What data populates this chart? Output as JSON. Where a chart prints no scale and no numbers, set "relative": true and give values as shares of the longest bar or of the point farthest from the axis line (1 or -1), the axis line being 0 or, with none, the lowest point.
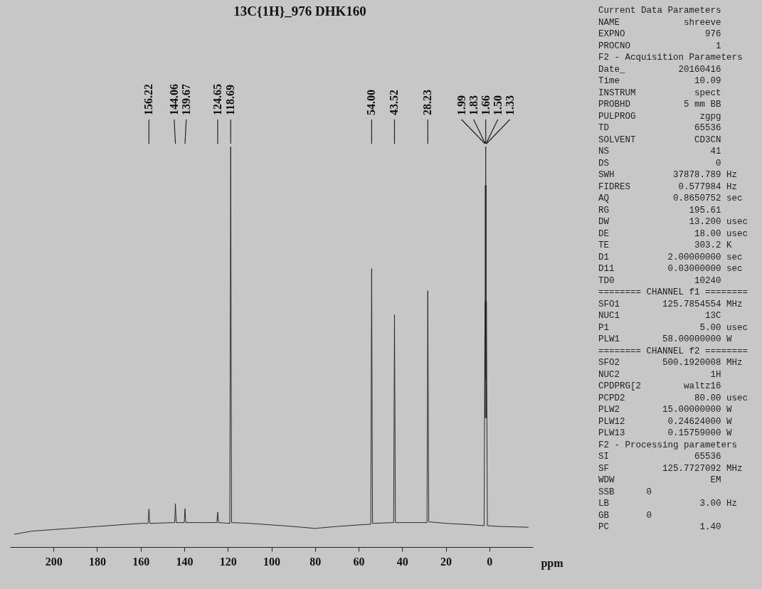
{
  "chart_data": [
    {
      "type": "line",
      "title": "13C{1H}_976 DHK160",
      "xlabel": "ppm",
      "relative": true,
      "color": "#2b2b2b",
      "tick_labels": "x",
      "xlim": [
        220,
        -20
      ],
      "xticks": [
        200,
        180,
        160,
        140,
        120,
        100,
        80,
        60,
        40,
        20,
        0
      ],
      "x": [
        218,
        210,
        200,
        190,
        180,
        170,
        160,
        156.6,
        156.22,
        155.8,
        144.4,
        144.06,
        143.7,
        140.0,
        139.67,
        139.3,
        130,
        125.0,
        124.65,
        124.3,
        119.1,
        118.69,
        118.3,
        110,
        100,
        90,
        80,
        70,
        60,
        54.4,
        54.0,
        53.6,
        43.9,
        43.52,
        43.1,
        28.6,
        28.23,
        27.8,
        20,
        10,
        2.4,
        1.99,
        1.91,
        1.83,
        1.75,
        1.66,
        1.58,
        1.5,
        1.42,
        1.33,
        0.9,
        -5,
        -18
      ],
      "values": [
        0,
        0.008,
        0.012,
        0.016,
        0.02,
        0.024,
        0.028,
        0.028,
        0.065,
        0.028,
        0.03,
        0.079,
        0.03,
        0.03,
        0.066,
        0.03,
        0.03,
        0.03,
        0.057,
        0.03,
        0.028,
        1,
        0.03,
        0.028,
        0.024,
        0.02,
        0.015,
        0.02,
        0.024,
        0.026,
        0.685,
        0.028,
        0.03,
        0.566,
        0.03,
        0.03,
        0.628,
        0.032,
        0.028,
        0.025,
        0.022,
        0.6,
        0.3,
        0.9,
        0.4,
        1,
        0.4,
        0.9,
        0.3,
        0.6,
        0.022,
        0.02,
        0.018
      ],
      "annotations": [
        {
          "text": "156.22",
          "x": 156.22
        },
        {
          "text": "144.06",
          "x": 144.06
        },
        {
          "text": "139.67",
          "x": 139.67
        },
        {
          "text": "124.65",
          "x": 124.65
        },
        {
          "text": "118.69",
          "x": 118.69
        },
        {
          "text": "54.00",
          "x": 54.0
        },
        {
          "text": "43.52",
          "x": 43.52
        },
        {
          "text": "28.23",
          "x": 28.23
        },
        {
          "text": "1.99",
          "x": 1.99
        },
        {
          "text": "1.83",
          "x": 1.83
        },
        {
          "text": "1.66",
          "x": 1.66
        },
        {
          "text": "1.50",
          "x": 1.5
        },
        {
          "text": "1.33",
          "x": 1.33
        }
      ]
    },
    {
      "type": "other",
      "annotations": [
        "Current Data Parameters",
        "NAME            shreeve",
        "EXPNO               976",
        "PROCNO                1",
        "F2 - Acquisition Parameters",
        "Date_          20160416",
        "Time              10.09",
        "INSTRUM           spect",
        "PROBHD          5 mm BB",
        "PULPROG            zgpg",
        "TD                65536",
        "SOLVENT           CD3CN",
        "NS                   41",
        "DS                    0",
        "SWH           37878.789 Hz",
        "FIDRES         0.577984 Hz",
        "AQ            0.8650752 sec",
        "RG               195.61",
        "DW               13.200 usec",
        "DE                18.00 usec",
        "TE                303.2 K",
        "D1           2.00000000 sec",
        "D11          0.03000000 sec",
        "TD0               10240",
        "======== CHANNEL f1 ========",
        "SFO1        125.7854554 MHz",
        "NUC1                13C",
        "P1                 5.00 usec",
        "PLW1        58.00000000 W",
        "======== CHANNEL f2 ========",
        "SFO2        500.1920008 MHz",
        "NUC2                 1H",
        "CPDPRG[2        waltz16",
        "PCPD2             80.00 usec",
        "PLW2        15.00000000 W",
        "PLW12        0.24624000 W",
        "PLW13        0.15759000 W",
        "F2 - Processing parameters",
        "SI                65536",
        "SF          125.7727092 MHz",
        "WDW                  EM",
        "SSB      0",
        "LB                 3.00 Hz",
        "GB       0",
        "PC                 1.40"
      ]
    }
  ]
}
